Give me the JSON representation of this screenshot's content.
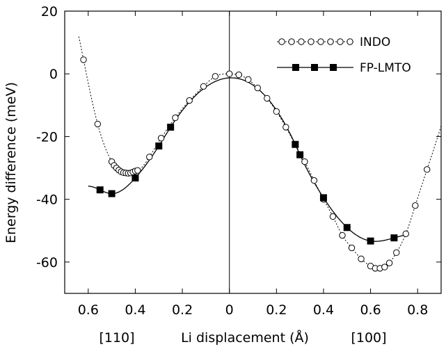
{
  "chart_data": {
    "type": "line",
    "xlabel": "Li displacement (Å)",
    "ylabel": "Energy difference (meV)",
    "direction_labels": {
      "left": "[110]",
      "right": "[100]"
    },
    "xlim": [
      -0.7,
      0.9
    ],
    "ylim": [
      -70,
      20
    ],
    "x_ticks": [
      -0.6,
      -0.4,
      -0.2,
      0,
      0.2,
      0.4,
      0.6,
      0.8
    ],
    "x_tick_labels": [
      "0.6",
      "0.4",
      "0.2",
      "0",
      "0.2",
      "0.4",
      "0.6",
      "0.8"
    ],
    "y_ticks": [
      20,
      0,
      -20,
      -40,
      -60
    ],
    "y_tick_labels": [
      "20",
      "0",
      "-20",
      "-40",
      "-60"
    ],
    "x_sign_note": "negative x = displacement along [110], positive x = along [100]",
    "vertical_line_at": 0,
    "legend_position": "top-right",
    "series": [
      {
        "name": "INDO",
        "style": "dotted-line-open-circles",
        "color": "#000000",
        "points": [
          [
            -0.62,
            4.5
          ],
          [
            -0.56,
            -16
          ],
          [
            -0.5,
            -28
          ],
          [
            -0.49,
            -29.2
          ],
          [
            -0.48,
            -30
          ],
          [
            -0.47,
            -30.7
          ],
          [
            -0.46,
            -31.2
          ],
          [
            -0.45,
            -31.5
          ],
          [
            -0.44,
            -31.6
          ],
          [
            -0.43,
            -31.7
          ],
          [
            -0.42,
            -31.6
          ],
          [
            -0.41,
            -31.3
          ],
          [
            -0.4,
            -31
          ],
          [
            -0.39,
            -30.8
          ],
          [
            -0.34,
            -26.5
          ],
          [
            -0.29,
            -20.5
          ],
          [
            -0.23,
            -14
          ],
          [
            -0.17,
            -8.5
          ],
          [
            -0.11,
            -4
          ],
          [
            -0.06,
            -0.8
          ],
          [
            0,
            0
          ],
          [
            0.04,
            -0.3
          ],
          [
            0.08,
            -1.8
          ],
          [
            0.12,
            -4.5
          ],
          [
            0.16,
            -7.8
          ],
          [
            0.2,
            -12
          ],
          [
            0.24,
            -17
          ],
          [
            0.28,
            -22.5
          ],
          [
            0.32,
            -28
          ],
          [
            0.36,
            -34
          ],
          [
            0.4,
            -40
          ],
          [
            0.44,
            -45.5
          ],
          [
            0.48,
            -51.5
          ],
          [
            0.52,
            -55.5
          ],
          [
            0.56,
            -59
          ],
          [
            0.6,
            -61.3
          ],
          [
            0.62,
            -62
          ],
          [
            0.64,
            -62
          ],
          [
            0.66,
            -61.6
          ],
          [
            0.68,
            -60.3
          ],
          [
            0.71,
            -57
          ],
          [
            0.75,
            -51
          ],
          [
            0.79,
            -42
          ],
          [
            0.84,
            -30.5
          ]
        ],
        "curve_range": [
          -0.64,
          0.9
        ]
      },
      {
        "name": "FP-LMTO",
        "style": "solid-line-filled-squares",
        "color": "#000000",
        "points": [
          [
            -0.55,
            -37
          ],
          [
            -0.5,
            -38.2
          ],
          [
            -0.4,
            -33.2
          ],
          [
            -0.3,
            -23
          ],
          [
            -0.25,
            -17
          ],
          [
            0.28,
            -22.5
          ],
          [
            0.3,
            -25.8
          ],
          [
            0.4,
            -39.5
          ],
          [
            0.5,
            -49
          ],
          [
            0.6,
            -53.3
          ],
          [
            0.7,
            -52.3
          ]
        ],
        "curve_range": [
          -0.6,
          0.76
        ]
      }
    ]
  }
}
